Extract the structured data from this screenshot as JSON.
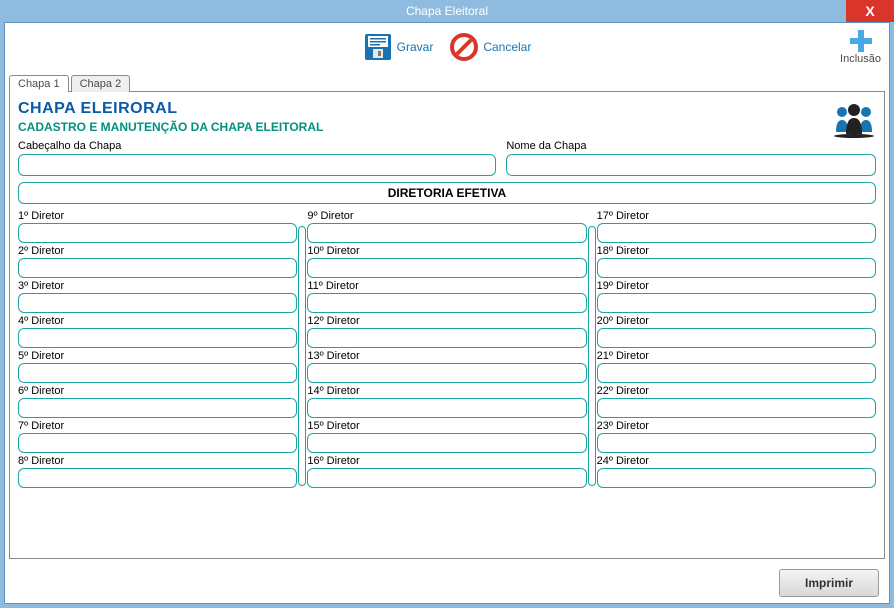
{
  "window": {
    "title": "Chapa Eleitoral",
    "close_label": "X"
  },
  "toolbar": {
    "save_label": "Gravar",
    "cancel_label": "Cancelar",
    "add_label": "Inclusão"
  },
  "tabs": [
    {
      "label": "Chapa 1"
    },
    {
      "label": "Chapa 2"
    }
  ],
  "heading": {
    "title": "CHAPA ELEIRORAL",
    "subtitle": "CADASTRO E MANUTENÇÃO DA CHAPA ELEITORAL"
  },
  "header_fields": {
    "cabecalho_label": "Cabeçalho da Chapa",
    "cabecalho_value": "",
    "nome_label": "Nome da Chapa",
    "nome_value": ""
  },
  "section": {
    "diretoria_label": "DIRETORIA EFETIVA"
  },
  "diretoria": {
    "col1": [
      {
        "label": "1º Diretor",
        "value": ""
      },
      {
        "label": "2º Diretor",
        "value": ""
      },
      {
        "label": "3º Diretor",
        "value": ""
      },
      {
        "label": "4º Diretor",
        "value": ""
      },
      {
        "label": "5º Diretor",
        "value": ""
      },
      {
        "label": "6º Diretor",
        "value": ""
      },
      {
        "label": "7º Diretor",
        "value": ""
      },
      {
        "label": "8º Diretor",
        "value": ""
      }
    ],
    "col2": [
      {
        "label": "9º Diretor",
        "value": ""
      },
      {
        "label": "10º Diretor",
        "value": ""
      },
      {
        "label": "11º Diretor",
        "value": ""
      },
      {
        "label": "12º Diretor",
        "value": ""
      },
      {
        "label": "13º Diretor",
        "value": ""
      },
      {
        "label": "14º Diretor",
        "value": ""
      },
      {
        "label": "15º Diretor",
        "value": ""
      },
      {
        "label": "16º Diretor",
        "value": ""
      }
    ],
    "col3": [
      {
        "label": "17º Diretor",
        "value": ""
      },
      {
        "label": "18º Diretor",
        "value": ""
      },
      {
        "label": "19º Diretor",
        "value": ""
      },
      {
        "label": "20º Diretor",
        "value": ""
      },
      {
        "label": "21º Diretor",
        "value": ""
      },
      {
        "label": "22º Diretor",
        "value": ""
      },
      {
        "label": "23º Diretor",
        "value": ""
      },
      {
        "label": "24º Diretor",
        "value": ""
      }
    ]
  },
  "footer": {
    "print_label": "Imprimir"
  },
  "colors": {
    "titlebar_bg": "#8fbcde",
    "close_bg": "#d9352a",
    "accent_blue": "#0a5aa8",
    "accent_teal": "#1aa6a0",
    "subtitle_teal": "#009180",
    "link_blue": "#1874b0"
  }
}
